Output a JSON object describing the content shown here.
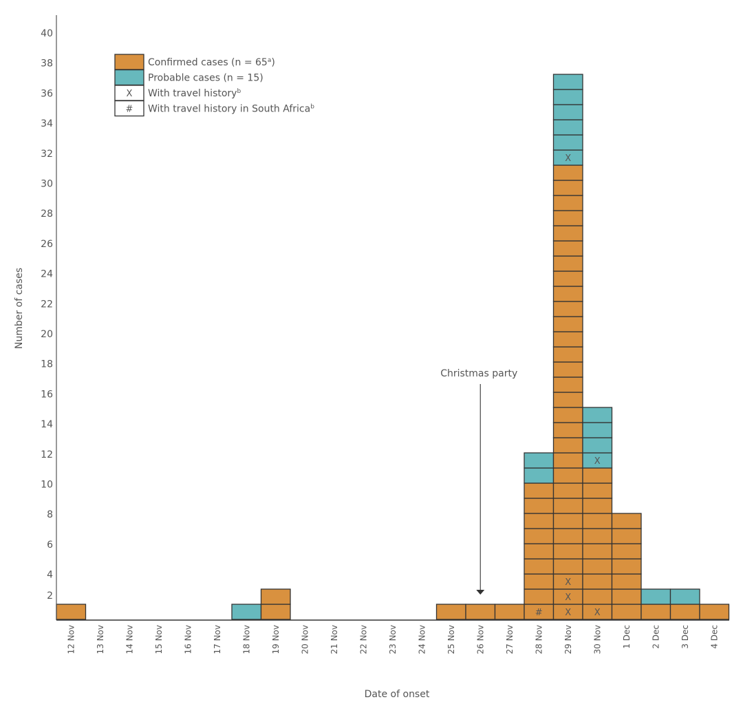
{
  "chart_data": {
    "type": "bar",
    "stacked": true,
    "title": "",
    "xlabel": "Date of onset",
    "ylabel": "Number of cases",
    "ylim": [
      0,
      40
    ],
    "yticks": [
      2,
      4,
      6,
      8,
      10,
      12,
      14,
      16,
      18,
      20,
      22,
      24,
      26,
      28,
      30,
      32,
      34,
      36,
      38,
      40
    ],
    "grid": false,
    "categories": [
      "12 Nov",
      "13 Nov",
      "14 Nov",
      "15 Nov",
      "16 Nov",
      "17 Nov",
      "18 Nov",
      "19 Nov",
      "20 Nov",
      "21 Nov",
      "22 Nov",
      "23 Nov",
      "24 Nov",
      "25 Nov",
      "26 Nov",
      "27 Nov",
      "28 Nov",
      "29 Nov",
      "30 Nov",
      "1 Dec",
      "2 Dec",
      "3 Dec",
      "4 Dec"
    ],
    "series": [
      {
        "name": "Confirmed cases (n = 65a)",
        "color": "#d9913f",
        "values": [
          1,
          0,
          0,
          0,
          0,
          0,
          0,
          2,
          0,
          0,
          0,
          0,
          0,
          1,
          1,
          1,
          9,
          30,
          10,
          7,
          1,
          1,
          1
        ]
      },
      {
        "name": "Probable cases (n = 15)",
        "color": "#67b9bd",
        "values": [
          0,
          0,
          0,
          0,
          0,
          0,
          1,
          0,
          0,
          0,
          0,
          0,
          0,
          0,
          0,
          0,
          2,
          6,
          4,
          0,
          1,
          1,
          0
        ]
      }
    ],
    "cell_marks": [
      {
        "date": "28 Nov",
        "case_index": 1,
        "mark": "#"
      },
      {
        "date": "29 Nov",
        "case_index": 1,
        "mark": "X"
      },
      {
        "date": "29 Nov",
        "case_index": 2,
        "mark": "X"
      },
      {
        "date": "29 Nov",
        "case_index": 3,
        "mark": "X"
      },
      {
        "date": "29 Nov",
        "case_index": 31,
        "mark": "X"
      },
      {
        "date": "30 Nov",
        "case_index": 1,
        "mark": "X"
      },
      {
        "date": "30 Nov",
        "case_index": 11,
        "mark": "X"
      }
    ],
    "legend": {
      "placement": "top-left",
      "entries": [
        {
          "label": "Confirmed cases (n = 65",
          "sup": "a",
          "suffix": ")",
          "swatch": "#d9913f",
          "symbol": ""
        },
        {
          "label": "Probable cases (n = 15)",
          "sup": "",
          "suffix": "",
          "swatch": "#67b9bd",
          "symbol": ""
        },
        {
          "label": "With travel history",
          "sup": "b",
          "suffix": "",
          "swatch": "#ffffff",
          "symbol": "X"
        },
        {
          "label": "With travel history in South Africa",
          "sup": "b",
          "suffix": "",
          "swatch": "#ffffff",
          "symbol": "#"
        }
      ]
    },
    "annotations": [
      {
        "text": "Christmas party",
        "date": "26 Nov",
        "type": "arrow"
      }
    ]
  }
}
